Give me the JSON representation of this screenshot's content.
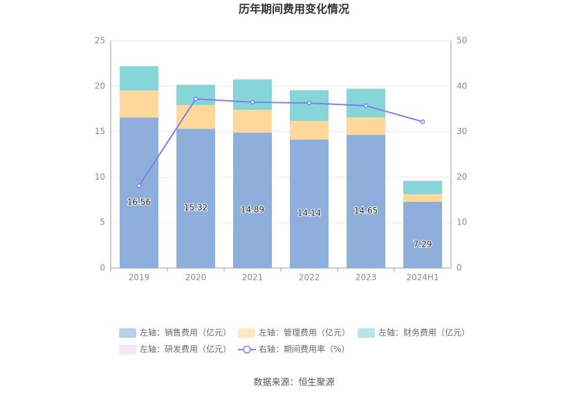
{
  "chart_data": {
    "type": "bar",
    "stacked": true,
    "title": "历年期间费用变化情况",
    "source": "数据来源：恒生聚源",
    "categories": [
      "2019",
      "2020",
      "2021",
      "2022",
      "2023",
      "2024H1"
    ],
    "series": [
      {
        "name": "左轴：销售费用（亿元）",
        "color": "#8eaedb",
        "values": [
          16.56,
          15.32,
          14.89,
          14.14,
          14.65,
          7.29
        ],
        "show_labels": true
      },
      {
        "name": "左轴：管理费用（亿元）",
        "color": "#fdd89a",
        "values": [
          2.97,
          2.61,
          2.51,
          2.05,
          1.92,
          0.84
        ]
      },
      {
        "name": "左轴：财务费用（亿元）",
        "color": "#86d5d8",
        "values": [
          2.66,
          2.21,
          3.34,
          3.34,
          3.11,
          1.44
        ]
      },
      {
        "name": "左轴：研发费用（亿元）",
        "color": "#f0d5e8",
        "values": [
          0.03,
          0.05,
          0.03,
          0.08,
          0.12,
          0.05
        ]
      },
      {
        "name": "右轴：期间费用率（%）",
        "color": "#7b7ff0",
        "type": "line",
        "axis": "y2",
        "values": [
          18.1,
          37.2,
          36.5,
          36.3,
          35.7,
          32.2
        ]
      }
    ],
    "ylim": [
      0,
      25
    ],
    "yticks": [
      0,
      5,
      10,
      15,
      20,
      25
    ],
    "y2lim": [
      0,
      50
    ],
    "y2ticks": [
      0,
      10,
      20,
      30,
      40,
      50
    ],
    "grid": true
  }
}
